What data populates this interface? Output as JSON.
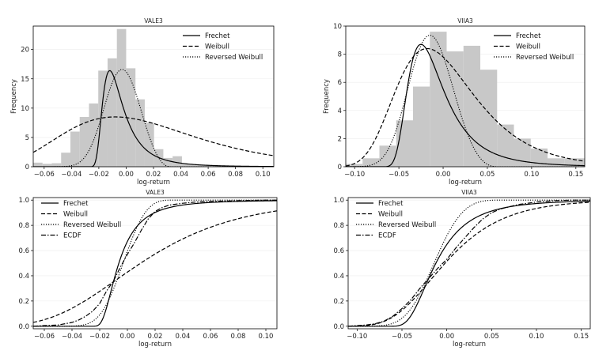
{
  "chart_data": [
    {
      "id": "vale3-hist",
      "type": "histogram",
      "title": "VALE3",
      "xlabel": "log-return",
      "ylabel": "Frequency",
      "xlim": [
        -0.068,
        0.108
      ],
      "ylim": [
        0,
        24
      ],
      "xticks": [
        -0.06,
        -0.04,
        -0.02,
        0.0,
        0.02,
        0.04,
        0.06,
        0.08,
        0.1
      ],
      "xtick_labels": [
        "−0.06",
        "−0.04",
        "−0.02",
        "0.00",
        "0.02",
        "0.04",
        "0.06",
        "0.08",
        "0.10"
      ],
      "yticks": [
        0,
        5,
        10,
        15,
        20
      ],
      "ytick_labels": [
        "0",
        "5",
        "10",
        "15",
        "20"
      ],
      "legend_position": "top-right",
      "bins": {
        "start": -0.068,
        "width": 0.0068,
        "counts": [
          0.7,
          0.5,
          0.6,
          2.4,
          6.0,
          8.5,
          10.8,
          16.4,
          18.5,
          23.5,
          16.8,
          11.5,
          7.5,
          3.0,
          1.5,
          1.8,
          0.5,
          0.3,
          0.3,
          0.2,
          0.1,
          0.1,
          0.1,
          0.1,
          0.1,
          0.1
        ]
      },
      "series": [
        {
          "name": "Frechet",
          "dist": "frechet",
          "style": "solid",
          "scale_y": 16.4,
          "params": {
            "mode": -0.012,
            "scale": 0.03,
            "shape": 3.3
          }
        },
        {
          "name": "Weibull",
          "dist": "gumbel",
          "style": "dashed",
          "scale_y": 8.5,
          "params": {
            "mode": -0.008,
            "scale": 0.048
          }
        },
        {
          "name": "Reversed Weibull",
          "dist": "rweibull",
          "style": "dotted",
          "scale_y": 16.6,
          "params": {
            "mode": -0.003,
            "scale": 0.04,
            "shape": 3.2
          }
        }
      ]
    },
    {
      "id": "viia3-hist",
      "type": "histogram",
      "title": "VIIA3",
      "xlabel": "log-return",
      "ylabel": "Frequency",
      "xlim": [
        -0.11,
        0.16
      ],
      "ylim": [
        0,
        10
      ],
      "xticks": [
        -0.1,
        -0.05,
        0.0,
        0.05,
        0.1,
        0.15
      ],
      "xtick_labels": [
        "−0.10",
        "−0.05",
        "0.00",
        "0.05",
        "0.10",
        "0.15"
      ],
      "yticks": [
        0,
        2,
        4,
        6,
        8,
        10
      ],
      "ytick_labels": [
        "0",
        "2",
        "4",
        "6",
        "8",
        "10"
      ],
      "legend_position": "top-right",
      "bins": {
        "start": -0.11,
        "width": 0.019,
        "counts": [
          0.2,
          0.6,
          1.5,
          3.3,
          5.7,
          9.6,
          8.2,
          8.6,
          6.9,
          3.0,
          2.0,
          1.3,
          0.6,
          0.6,
          0.6
        ]
      },
      "series": [
        {
          "name": "Frechet",
          "dist": "frechet",
          "style": "solid",
          "scale_y": 8.7,
          "params": {
            "mode": -0.025,
            "scale": 0.115,
            "shape": 5.0
          }
        },
        {
          "name": "Weibull",
          "dist": "gumbel",
          "style": "dashed",
          "scale_y": 8.4,
          "params": {
            "mode": -0.018,
            "scale": 0.044
          }
        },
        {
          "name": "Reversed Weibull",
          "dist": "rweibull",
          "style": "dotted",
          "scale_y": 9.35,
          "params": {
            "mode": -0.015,
            "scale": 0.085,
            "shape": 3.6
          }
        }
      ]
    },
    {
      "id": "vale3-cdf",
      "type": "line",
      "title": "VALE3",
      "xlabel": "log-return",
      "ylabel": "",
      "xlim": [
        -0.068,
        0.108
      ],
      "ylim": [
        -0.02,
        1.02
      ],
      "xticks": [
        -0.06,
        -0.04,
        -0.02,
        0.0,
        0.02,
        0.04,
        0.06,
        0.08,
        0.1
      ],
      "xtick_labels": [
        "−0.06",
        "−0.04",
        "−0.02",
        "0.00",
        "0.02",
        "0.04",
        "0.06",
        "0.08",
        "0.10"
      ],
      "yticks": [
        0,
        0.2,
        0.4,
        0.6,
        0.8,
        1.0
      ],
      "ytick_labels": [
        "0.0",
        "0.2",
        "0.4",
        "0.6",
        "0.8",
        "1.0"
      ],
      "legend_position": "top-left",
      "series": [
        {
          "name": "Frechet",
          "dist": "frechet",
          "style": "solid",
          "params": {
            "mode": -0.012,
            "scale": 0.03,
            "shape": 3.3
          }
        },
        {
          "name": "Weibull",
          "dist": "gumbel",
          "style": "dashed",
          "params": {
            "mode": -0.008,
            "scale": 0.048
          }
        },
        {
          "name": "Reversed Weibull",
          "dist": "rweibull",
          "style": "dotted",
          "params": {
            "mode": -0.003,
            "scale": 0.04,
            "shape": 3.2
          }
        },
        {
          "name": "ECDF",
          "style": "dashdot",
          "x": [
            -0.068,
            -0.06,
            -0.05,
            -0.045,
            -0.04,
            -0.035,
            -0.03,
            -0.025,
            -0.02,
            -0.015,
            -0.01,
            -0.005,
            0.0,
            0.005,
            0.01,
            0.015,
            0.02,
            0.025,
            0.03,
            0.04,
            0.05,
            0.06,
            0.08,
            0.1,
            0.108
          ],
          "y": [
            0.0,
            0.005,
            0.01,
            0.02,
            0.03,
            0.05,
            0.08,
            0.12,
            0.18,
            0.28,
            0.36,
            0.47,
            0.57,
            0.66,
            0.76,
            0.85,
            0.91,
            0.94,
            0.96,
            0.975,
            0.985,
            0.99,
            0.995,
            1.0,
            1.0
          ]
        }
      ]
    },
    {
      "id": "viia3-cdf",
      "type": "line",
      "title": "VIIA3",
      "xlabel": "log-return",
      "ylabel": "",
      "xlim": [
        -0.11,
        0.16
      ],
      "ylim": [
        -0.02,
        1.02
      ],
      "xticks": [
        -0.1,
        -0.05,
        0.0,
        0.05,
        0.1,
        0.15
      ],
      "xtick_labels": [
        "−0.10",
        "−0.05",
        "0.00",
        "0.05",
        "0.10",
        "0.15"
      ],
      "yticks": [
        0,
        0.2,
        0.4,
        0.6,
        0.8,
        1.0
      ],
      "ytick_labels": [
        "0.0",
        "0.2",
        "0.4",
        "0.6",
        "0.8",
        "1.0"
      ],
      "legend_position": "top-left",
      "series": [
        {
          "name": "Frechet",
          "dist": "frechet",
          "style": "solid",
          "params": {
            "mode": -0.025,
            "scale": 0.115,
            "shape": 5.0
          }
        },
        {
          "name": "Weibull",
          "dist": "gumbel",
          "style": "dashed",
          "params": {
            "mode": -0.018,
            "scale": 0.044
          }
        },
        {
          "name": "Reversed Weibull",
          "dist": "rweibull",
          "style": "dotted",
          "params": {
            "mode": -0.015,
            "scale": 0.085,
            "shape": 3.6
          }
        },
        {
          "name": "ECDF",
          "style": "dashdot",
          "x": [
            -0.11,
            -0.09,
            -0.08,
            -0.07,
            -0.06,
            -0.05,
            -0.04,
            -0.03,
            -0.02,
            -0.01,
            0.0,
            0.01,
            0.02,
            0.03,
            0.04,
            0.05,
            0.06,
            0.08,
            0.1,
            0.12,
            0.14,
            0.16
          ],
          "y": [
            0.0,
            0.01,
            0.02,
            0.04,
            0.08,
            0.14,
            0.21,
            0.3,
            0.38,
            0.46,
            0.53,
            0.62,
            0.7,
            0.78,
            0.85,
            0.9,
            0.93,
            0.965,
            0.985,
            0.995,
            1.0,
            1.0
          ]
        }
      ]
    }
  ]
}
